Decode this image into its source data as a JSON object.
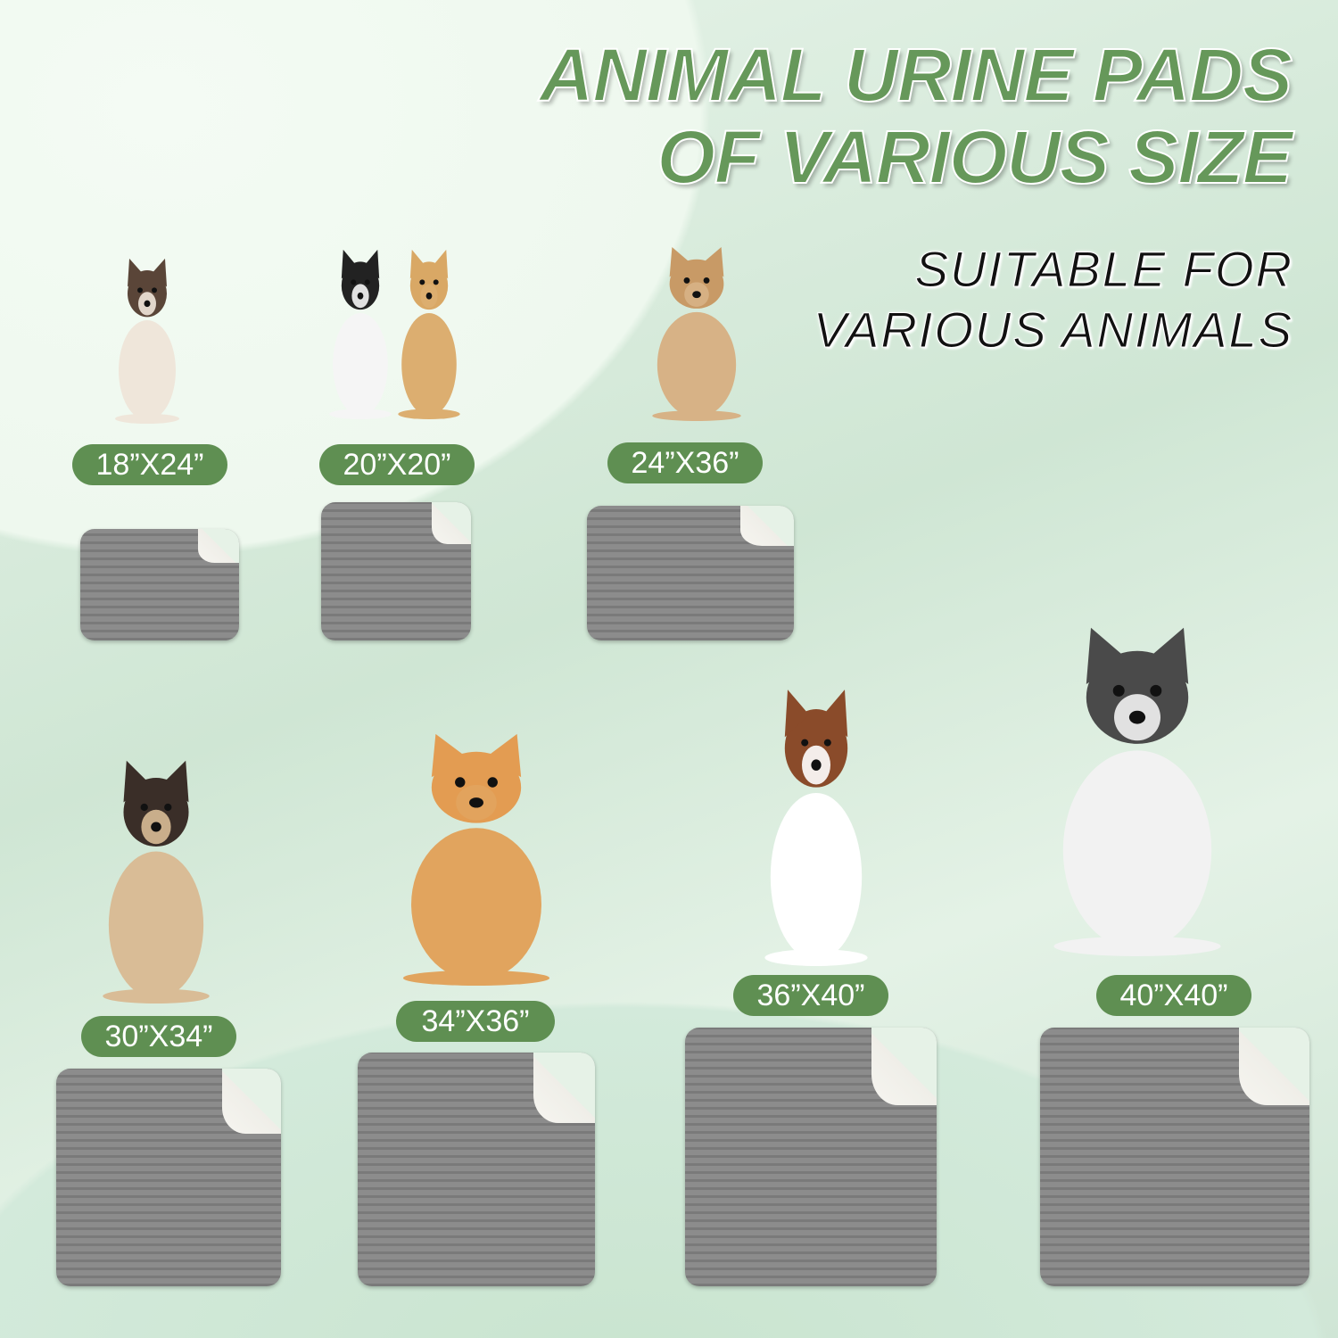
{
  "title": {
    "line1": "ANIMAL URINE PADS",
    "line2": "OF VARIOUS SIZE"
  },
  "subtitle": {
    "line1": "SUITABLE FOR",
    "line2": "VARIOUS ANIMALS"
  },
  "colors": {
    "accent": "#5f8f52",
    "title": "#66985a",
    "pad": "#808080",
    "pad_back": "#f3f2ec"
  },
  "sizes": [
    {
      "label": "18”X24”",
      "animal": "siamese-cat"
    },
    {
      "label": "20”X20”",
      "animal": "cat-and-puppy"
    },
    {
      "label": "24”X36”",
      "animal": "tan-dog"
    },
    {
      "label": "30”X34”",
      "animal": "pug"
    },
    {
      "label": "34”X36”",
      "animal": "corgi"
    },
    {
      "label": "36”X40”",
      "animal": "australian-shepherd"
    },
    {
      "label": "40”X40”",
      "animal": "husky"
    }
  ]
}
